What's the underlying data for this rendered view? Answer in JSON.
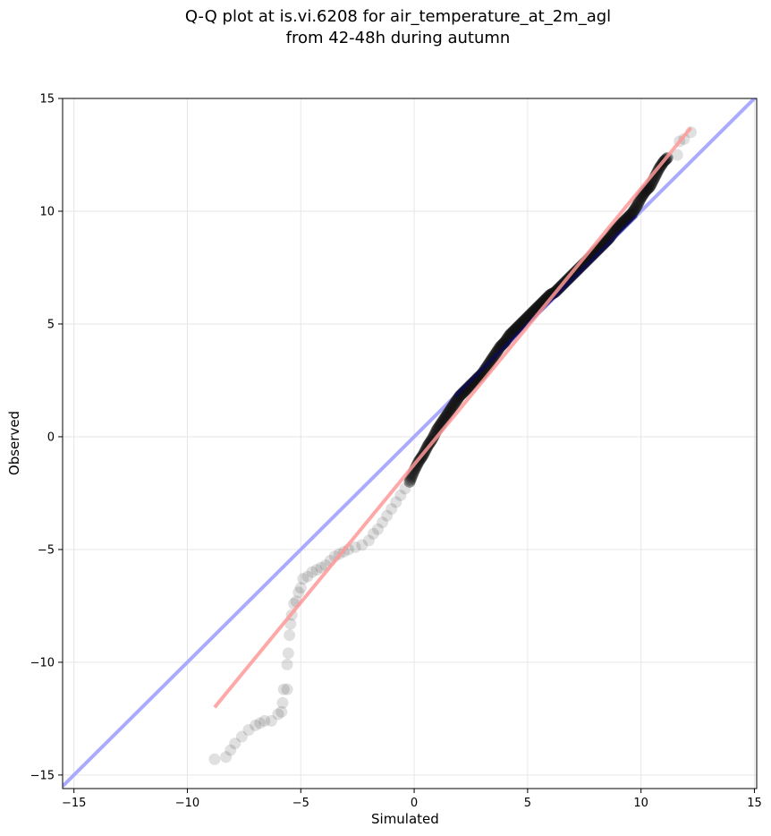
{
  "chart_data": {
    "type": "scatter",
    "title": "Q-Q plot at is.vi.6208 for air_temperature_at_2m_agl",
    "subtitle": "from 42-48h during autumn",
    "xlabel": "Simulated",
    "ylabel": "Observed",
    "xlim": [
      -15.5,
      15.1
    ],
    "ylim": [
      -15.6,
      15.0
    ],
    "xticks": [
      -15,
      -10,
      -5,
      0,
      5,
      10,
      15
    ],
    "yticks": [
      -15,
      -10,
      -5,
      0,
      5,
      10,
      15
    ],
    "xtick_labels": [
      "−15",
      "−10",
      "−5",
      "0",
      "5",
      "10",
      "15"
    ],
    "ytick_labels": [
      "−15",
      "−10",
      "−5",
      "0",
      "5",
      "10",
      "15"
    ],
    "grid": true,
    "reference_line": {
      "from": [
        -15.5,
        -15.5
      ],
      "to": [
        15.1,
        15.1
      ],
      "color": "#aaaaff"
    },
    "fit_line": {
      "from": [
        -8.8,
        -12.0
      ],
      "to": [
        12.2,
        13.7
      ],
      "color": "#ff9999"
    },
    "tail_points": [
      [
        -8.8,
        -14.3
      ],
      [
        -8.3,
        -14.2
      ],
      [
        -8.1,
        -13.9
      ],
      [
        -7.9,
        -13.6
      ],
      [
        -7.6,
        -13.3
      ],
      [
        -7.3,
        -13.0
      ],
      [
        -7.0,
        -12.8
      ],
      [
        -6.8,
        -12.7
      ],
      [
        -6.6,
        -12.6
      ],
      [
        -6.3,
        -12.6
      ],
      [
        -6.0,
        -12.3
      ],
      [
        -5.85,
        -12.2
      ],
      [
        -5.8,
        -11.8
      ],
      [
        -5.75,
        -11.2
      ],
      [
        -5.6,
        -11.2
      ],
      [
        -5.6,
        -10.1
      ],
      [
        -5.55,
        -9.6
      ],
      [
        -5.5,
        -8.8
      ],
      [
        -5.45,
        -8.3
      ],
      [
        -5.4,
        -7.9
      ],
      [
        -5.3,
        -7.4
      ],
      [
        -5.2,
        -7.3
      ],
      [
        -5.1,
        -6.9
      ],
      [
        -5.0,
        -6.7
      ],
      [
        -4.9,
        -6.3
      ],
      [
        -4.7,
        -6.2
      ],
      [
        -4.5,
        -6.0
      ],
      [
        -4.3,
        -5.9
      ],
      [
        -4.1,
        -5.8
      ],
      [
        -3.9,
        -5.7
      ],
      [
        -3.7,
        -5.5
      ],
      [
        -3.5,
        -5.3
      ],
      [
        -3.3,
        -5.2
      ],
      [
        -3.1,
        -5.1
      ],
      [
        -2.9,
        -5.0
      ],
      [
        -2.6,
        -4.9
      ],
      [
        -2.3,
        -4.8
      ],
      [
        -2.0,
        -4.6
      ],
      [
        -1.8,
        -4.3
      ],
      [
        -1.6,
        -4.1
      ],
      [
        -1.4,
        -3.8
      ],
      [
        -1.2,
        -3.5
      ],
      [
        -1.0,
        -3.2
      ],
      [
        -0.8,
        -2.9
      ],
      [
        -0.6,
        -2.6
      ],
      [
        -0.4,
        -2.3
      ],
      [
        -0.2,
        -2.0
      ]
    ],
    "points": [
      [
        -0.2,
        -2.0
      ],
      [
        0.0,
        -1.5
      ],
      [
        0.2,
        -1.1
      ],
      [
        0.4,
        -0.8
      ],
      [
        0.6,
        -0.4
      ],
      [
        0.8,
        -0.1
      ],
      [
        1.0,
        0.3
      ],
      [
        1.2,
        0.6
      ],
      [
        1.4,
        0.9
      ],
      [
        1.6,
        1.2
      ],
      [
        1.8,
        1.5
      ],
      [
        2.0,
        1.8
      ],
      [
        2.2,
        2.0
      ],
      [
        2.4,
        2.2
      ],
      [
        2.6,
        2.4
      ],
      [
        2.8,
        2.6
      ],
      [
        3.0,
        2.8
      ],
      [
        3.2,
        3.1
      ],
      [
        3.4,
        3.4
      ],
      [
        3.6,
        3.7
      ],
      [
        3.8,
        4.0
      ],
      [
        4.0,
        4.2
      ],
      [
        4.2,
        4.5
      ],
      [
        4.4,
        4.7
      ],
      [
        4.6,
        4.9
      ],
      [
        4.8,
        5.1
      ],
      [
        5.0,
        5.3
      ],
      [
        5.2,
        5.5
      ],
      [
        5.4,
        5.7
      ],
      [
        5.6,
        5.9
      ],
      [
        5.8,
        6.1
      ],
      [
        6.0,
        6.3
      ],
      [
        6.2,
        6.4
      ],
      [
        6.4,
        6.6
      ],
      [
        6.6,
        6.8
      ],
      [
        6.8,
        7.0
      ],
      [
        7.0,
        7.2
      ],
      [
        7.2,
        7.4
      ],
      [
        7.4,
        7.6
      ],
      [
        7.6,
        7.8
      ],
      [
        7.8,
        8.0
      ],
      [
        8.0,
        8.2
      ],
      [
        8.2,
        8.4
      ],
      [
        8.4,
        8.6
      ],
      [
        8.6,
        8.8
      ],
      [
        8.8,
        9.1
      ],
      [
        9.0,
        9.3
      ],
      [
        9.2,
        9.5
      ],
      [
        9.4,
        9.7
      ],
      [
        9.6,
        9.9
      ],
      [
        9.8,
        10.2
      ],
      [
        10.0,
        10.6
      ],
      [
        10.2,
        10.9
      ],
      [
        10.4,
        11.1
      ],
      [
        10.6,
        11.5
      ],
      [
        10.8,
        11.9
      ],
      [
        11.0,
        12.2
      ],
      [
        11.2,
        12.4
      ]
    ],
    "upper_tail_points": [
      [
        11.6,
        12.5
      ],
      [
        11.7,
        13.1
      ],
      [
        11.9,
        13.2
      ],
      [
        12.2,
        13.5
      ]
    ]
  }
}
